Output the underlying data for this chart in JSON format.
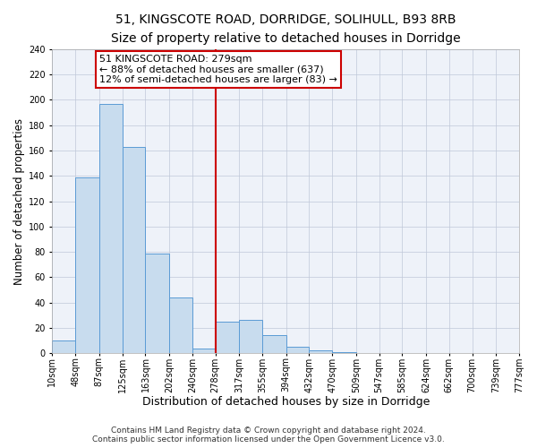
{
  "title": "51, KINGSCOTE ROAD, DORRIDGE, SOLIHULL, B93 8RB",
  "subtitle": "Size of property relative to detached houses in Dorridge",
  "xlabel": "Distribution of detached houses by size in Dorridge",
  "ylabel": "Number of detached properties",
  "bar_heights": [
    10,
    139,
    197,
    163,
    79,
    44,
    4,
    25,
    26,
    14,
    5,
    2,
    1,
    0,
    0,
    0,
    0,
    0,
    0,
    0
  ],
  "bin_edges": [
    10,
    48,
    87,
    125,
    163,
    202,
    240,
    278,
    317,
    355,
    394,
    432,
    470,
    509,
    547,
    585,
    624,
    662,
    700,
    739,
    777
  ],
  "bar_color": "#c8dcee",
  "bar_edge_color": "#5b9bd5",
  "bar_edge_width": 0.7,
  "red_line_x": 278,
  "annotation_text": "51 KINGSCOTE ROAD: 279sqm\n← 88% of detached houses are smaller (637)\n12% of semi-detached houses are larger (83) →",
  "annotation_box_color": "#ffffff",
  "annotation_box_edge": "#cc0000",
  "ylim": [
    0,
    240
  ],
  "yticks": [
    0,
    20,
    40,
    60,
    80,
    100,
    120,
    140,
    160,
    180,
    200,
    220,
    240
  ],
  "footer_line1": "Contains HM Land Registry data © Crown copyright and database right 2024.",
  "footer_line2": "Contains public sector information licensed under the Open Government Licence v3.0.",
  "title_fontsize": 10,
  "subtitle_fontsize": 9,
  "xlabel_fontsize": 9,
  "ylabel_fontsize": 8.5,
  "tick_fontsize": 7,
  "footer_fontsize": 6.5,
  "annotation_fontsize": 8,
  "bg_color": "#eef2f9",
  "grid_color": "#c0c8d8"
}
